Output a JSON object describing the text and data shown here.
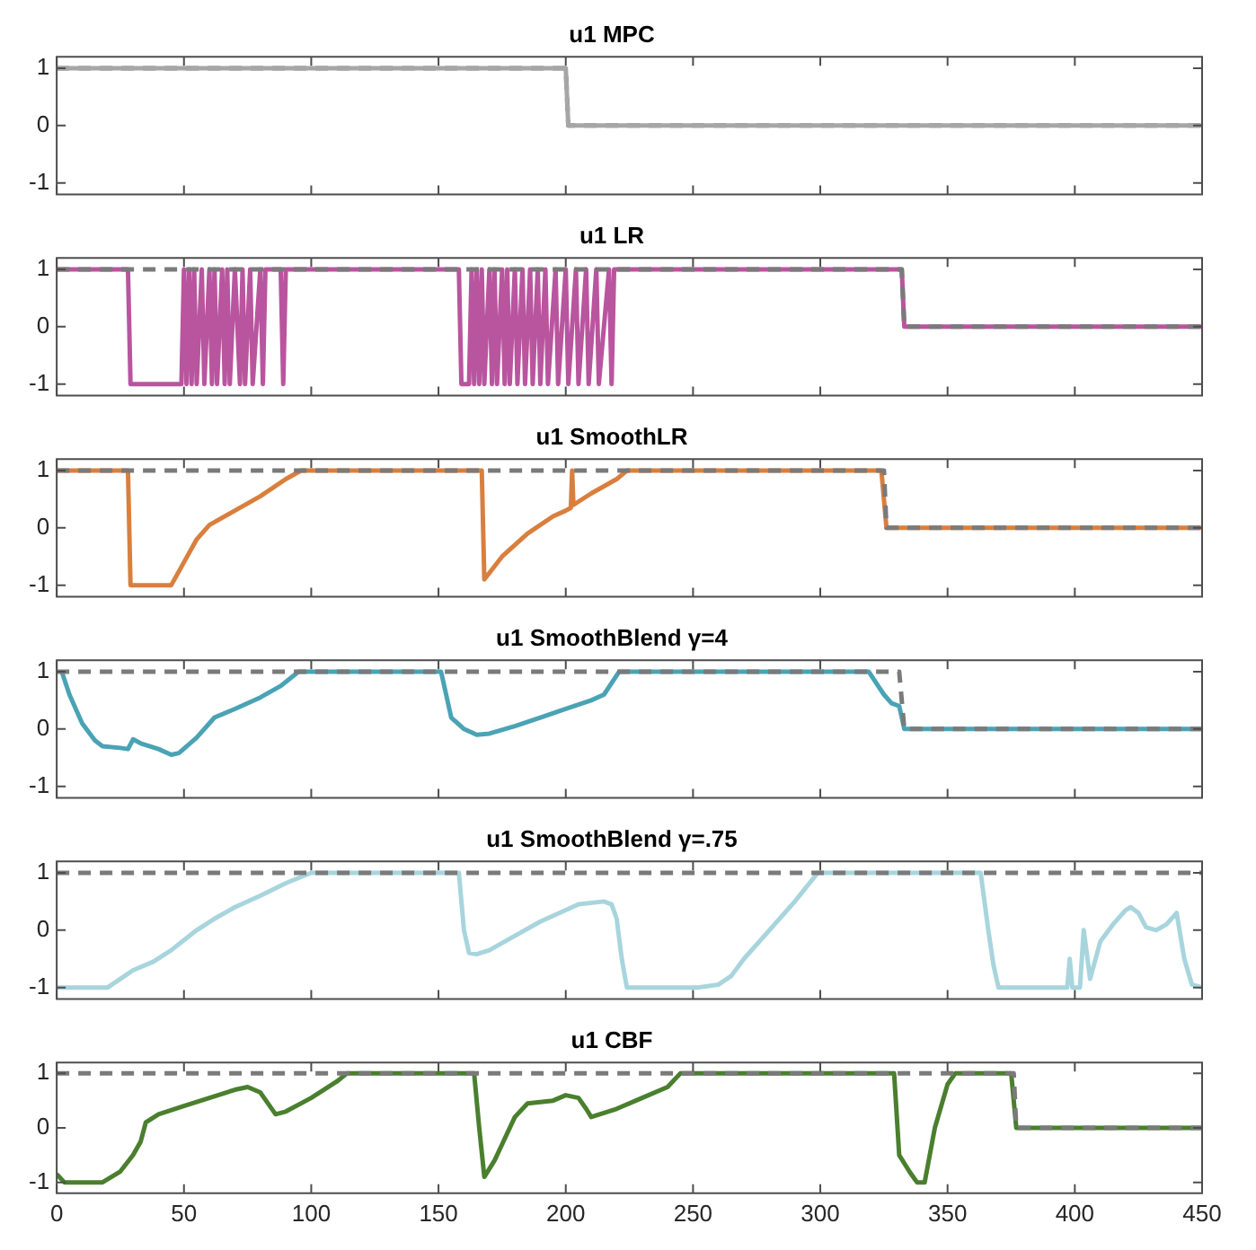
{
  "chart_data": [
    {
      "type": "line",
      "title": "u1 MPC",
      "xlim": [
        0,
        450
      ],
      "xticks": [
        0,
        50,
        100,
        150,
        200,
        250,
        300,
        350,
        400,
        450
      ],
      "ylim": [
        -1.2,
        1.2
      ],
      "yticks": [
        -1,
        0,
        1
      ],
      "tick_labels": "y",
      "marker": "none",
      "grid": false,
      "series": [
        {
          "color": "#a6a6a6",
          "line_style": "solid",
          "x": [
            0,
            200,
            201,
            450
          ],
          "values": [
            1,
            1,
            0,
            0
          ]
        },
        {
          "color": "#7a7a7a",
          "line_style": "dashed",
          "x": [
            0,
            200,
            201,
            450
          ],
          "values": [
            1,
            1,
            0,
            0
          ]
        }
      ]
    },
    {
      "type": "line",
      "title": "u1 LR",
      "xlim": [
        0,
        450
      ],
      "xticks": [
        0,
        50,
        100,
        150,
        200,
        250,
        300,
        350,
        400,
        450
      ],
      "ylim": [
        -1.2,
        1.2
      ],
      "yticks": [
        -1,
        0,
        1
      ],
      "tick_labels": "y",
      "marker": "none",
      "grid": false,
      "series": [
        {
          "color": "#7a7a7a",
          "line_style": "dashed",
          "x": [
            0,
            332,
            333,
            450
          ],
          "values": [
            1,
            1,
            0,
            0
          ]
        },
        {
          "color": "#b9559f",
          "line_style": "solid",
          "x": [
            0,
            28,
            29,
            49,
            50,
            51,
            52,
            53,
            54,
            55,
            57,
            58,
            60,
            61,
            62,
            63,
            65,
            66,
            67,
            68,
            70,
            72,
            73,
            74,
            76,
            77,
            80,
            81,
            82,
            88,
            89,
            90,
            158,
            159,
            162,
            163,
            164,
            165,
            166,
            167,
            168,
            170,
            171,
            172,
            173,
            175,
            176,
            177,
            178,
            180,
            181,
            183,
            184,
            186,
            187,
            189,
            190,
            192,
            193,
            196,
            197,
            200,
            201,
            204,
            205,
            208,
            209,
            212,
            213,
            217,
            218,
            219,
            332,
            333,
            450
          ],
          "values": [
            1,
            1,
            -1,
            -1,
            1,
            -1,
            1,
            -1,
            1,
            -1,
            1,
            -1,
            1,
            -1,
            1,
            -1,
            1,
            -1,
            1,
            -1,
            1,
            -1,
            1,
            -1,
            1,
            -1,
            1,
            -1,
            1,
            1,
            -1,
            1,
            1,
            -1,
            -1,
            1,
            -1,
            1,
            -1,
            1,
            -1,
            1,
            -1,
            1,
            -1,
            1,
            -1,
            1,
            -1,
            1,
            -1,
            1,
            -1,
            1,
            -1,
            1,
            -1,
            1,
            -1,
            1,
            -1,
            1,
            -1,
            1,
            -1,
            1,
            -1,
            1,
            -1,
            1,
            -1,
            1,
            1,
            0,
            0
          ]
        }
      ]
    },
    {
      "type": "line",
      "title": "u1 SmoothLR",
      "xlim": [
        0,
        450
      ],
      "xticks": [
        0,
        50,
        100,
        150,
        200,
        250,
        300,
        350,
        400,
        450
      ],
      "ylim": [
        -1.2,
        1.2
      ],
      "yticks": [
        -1,
        0,
        1
      ],
      "tick_labels": "y",
      "marker": "none",
      "grid": false,
      "series": [
        {
          "color": "#7a7a7a",
          "line_style": "dashed",
          "x": [
            0,
            325,
            326,
            450
          ],
          "values": [
            1,
            1,
            0,
            0
          ]
        },
        {
          "color": "#d97f3e",
          "line_style": "solid",
          "x": [
            0,
            28,
            29,
            45,
            50,
            55,
            60,
            70,
            80,
            90,
            96,
            167,
            168,
            175,
            185,
            195,
            200,
            202,
            202.5,
            203,
            210,
            220,
            224,
            324,
            326,
            450
          ],
          "values": [
            1,
            1,
            -1,
            -1,
            -0.6,
            -0.2,
            0.05,
            0.3,
            0.55,
            0.85,
            1,
            1,
            -0.9,
            -0.5,
            -0.1,
            0.2,
            0.3,
            0.35,
            1,
            0.4,
            0.6,
            0.85,
            1,
            1,
            0,
            0
          ]
        }
      ]
    },
    {
      "type": "line",
      "title": "u1 SmoothBlend γ=4",
      "xlim": [
        0,
        450
      ],
      "xticks": [
        0,
        50,
        100,
        150,
        200,
        250,
        300,
        350,
        400,
        450
      ],
      "ylim": [
        -1.2,
        1.2
      ],
      "yticks": [
        -1,
        0,
        1
      ],
      "tick_labels": "y",
      "marker": "none",
      "grid": false,
      "series": [
        {
          "color": "#7a7a7a",
          "line_style": "dashed",
          "x": [
            0,
            331,
            333,
            450
          ],
          "values": [
            1,
            1,
            0,
            0
          ]
        },
        {
          "color": "#4aa3b5",
          "line_style": "solid",
          "x": [
            2,
            5,
            10,
            15,
            18,
            25,
            28,
            30,
            33,
            40,
            45,
            48,
            55,
            62,
            70,
            80,
            88,
            95,
            151,
            153,
            155,
            160,
            165,
            170,
            180,
            190,
            200,
            210,
            215,
            221,
            319,
            325,
            328,
            331,
            333,
            450
          ],
          "values": [
            1,
            0.6,
            0.1,
            -0.2,
            -0.3,
            -0.33,
            -0.35,
            -0.18,
            -0.25,
            -0.35,
            -0.45,
            -0.42,
            -0.15,
            0.2,
            0.35,
            0.55,
            0.75,
            1,
            1,
            0.6,
            0.2,
            0,
            -0.1,
            -0.08,
            0.05,
            0.2,
            0.35,
            0.5,
            0.6,
            1,
            1,
            0.6,
            0.45,
            0.4,
            0,
            0
          ]
        }
      ]
    },
    {
      "type": "line",
      "title": "u1 SmoothBlend γ=.75",
      "xlim": [
        0,
        450
      ],
      "xticks": [
        0,
        50,
        100,
        150,
        200,
        250,
        300,
        350,
        400,
        450
      ],
      "ylim": [
        -1.2,
        1.2
      ],
      "yticks": [
        -1,
        0,
        1
      ],
      "tick_labels": "y",
      "marker": "none",
      "grid": false,
      "series": [
        {
          "color": "#7a7a7a",
          "line_style": "dashed",
          "x": [
            0,
            450
          ],
          "values": [
            1,
            1
          ]
        },
        {
          "color": "#a8d5dd",
          "line_style": "solid",
          "x": [
            0,
            20,
            25,
            30,
            38,
            45,
            55,
            62,
            70,
            80,
            90,
            100,
            158,
            160,
            162,
            165,
            170,
            180,
            190,
            200,
            205,
            215,
            218,
            220,
            222,
            224,
            252,
            260,
            265,
            270,
            280,
            290,
            299,
            363,
            366,
            368,
            370,
            397,
            398,
            399,
            402,
            403.5,
            406,
            410,
            415,
            420,
            422,
            425,
            428,
            432,
            436,
            440,
            443,
            446,
            450
          ],
          "values": [
            -1,
            -1,
            -0.85,
            -0.7,
            -0.55,
            -0.35,
            0,
            0.2,
            0.4,
            0.6,
            0.82,
            1,
            1,
            0,
            -0.4,
            -0.42,
            -0.35,
            -0.1,
            0.15,
            0.35,
            0.45,
            0.5,
            0.45,
            0.2,
            -0.5,
            -1,
            -1,
            -0.95,
            -0.8,
            -0.5,
            0,
            0.5,
            1,
            1,
            0,
            -0.6,
            -1,
            -1,
            -0.5,
            -1,
            -1,
            0,
            -0.85,
            -0.2,
            0.1,
            0.35,
            0.4,
            0.3,
            0.05,
            0,
            0.1,
            0.3,
            -0.5,
            -0.95,
            -1
          ]
        }
      ]
    },
    {
      "type": "line",
      "title": "u1 CBF",
      "xlim": [
        0,
        450
      ],
      "xticks": [
        0,
        50,
        100,
        150,
        200,
        250,
        300,
        350,
        400,
        450
      ],
      "ylim": [
        -1.2,
        1.2
      ],
      "yticks": [
        -1,
        0,
        1
      ],
      "marker": "none",
      "grid": false,
      "series": [
        {
          "color": "#7a7a7a",
          "line_style": "dashed",
          "x": [
            0,
            376,
            377,
            450
          ],
          "values": [
            1,
            1,
            0,
            0
          ]
        },
        {
          "color": "#4a7f2e",
          "line_style": "solid",
          "x": [
            0,
            3,
            18,
            25,
            30,
            33,
            35,
            40,
            50,
            60,
            70,
            75,
            80,
            86,
            90,
            100,
            110,
            114,
            164,
            166,
            168,
            172,
            175,
            180,
            185,
            195,
            200,
            205,
            208,
            210,
            220,
            230,
            240,
            245,
            329,
            331,
            335,
            338,
            341,
            345,
            350,
            353,
            375,
            377,
            450
          ],
          "values": [
            -0.85,
            -1,
            -1,
            -0.8,
            -0.5,
            -0.25,
            0.1,
            0.25,
            0.4,
            0.55,
            0.7,
            0.75,
            0.65,
            0.25,
            0.3,
            0.55,
            0.85,
            1,
            1,
            0,
            -0.9,
            -0.6,
            -0.3,
            0.2,
            0.45,
            0.5,
            0.6,
            0.55,
            0.35,
            0.2,
            0.35,
            0.55,
            0.75,
            1,
            1,
            -0.5,
            -0.8,
            -1,
            -1,
            0,
            0.8,
            1,
            1,
            0,
            0
          ]
        }
      ]
    }
  ]
}
